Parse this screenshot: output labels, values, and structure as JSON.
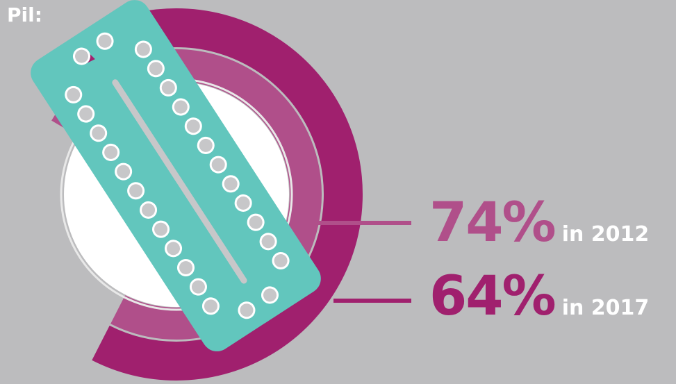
{
  "title": "Pil:",
  "colors": {
    "background": "#bcbcbe",
    "series_2012": "#b04f8a",
    "series_2017": "#a0206e",
    "pill_pack": "#62c6bd",
    "pill": "#c7c7c9",
    "center": "#ffffff"
  },
  "chart_data": {
    "type": "radial-bar",
    "title": "Pil:",
    "unit": "%",
    "series": [
      {
        "category": "2012",
        "value": 74,
        "label_value": "74%",
        "label_year": "in 2012"
      },
      {
        "category": "2017",
        "value": 64,
        "label_value": "64%",
        "label_year": "in 2017"
      }
    ]
  }
}
